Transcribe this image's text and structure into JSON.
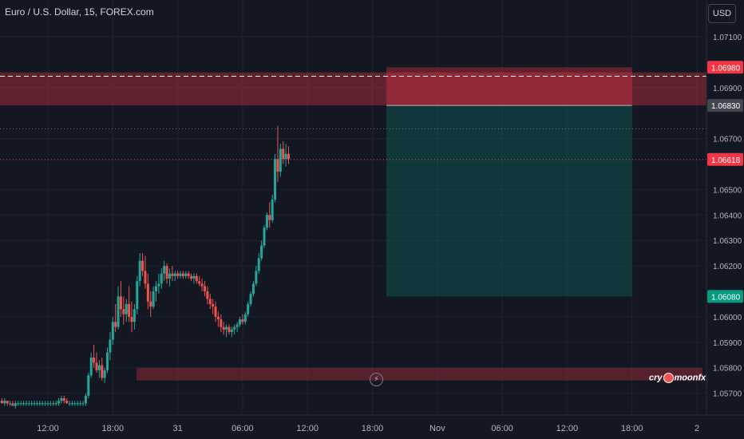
{
  "header": {
    "symbol_title": "Euro / U.S. Dollar, 15, FOREX.com"
  },
  "currency_button": "USD",
  "watermark": {
    "left": "cry",
    "right": "moonfx"
  },
  "lightning_icon": "lightning-icon",
  "colors": {
    "background": "#131722",
    "up": "#26a69a",
    "down": "#ef5350",
    "stop_zone": "rgba(242,54,69,0.35)",
    "target_zone": "rgba(8,153,129,0.25)",
    "support_zone": "rgba(242,54,69,0.30)",
    "grid": "#1e222d",
    "axis_text": "#b2b5be"
  },
  "chart_data": {
    "type": "candlestick",
    "title": "Euro / U.S. Dollar, 15, FOREX.com",
    "y_ticks": [
      1.071,
      1.069,
      1.067,
      1.065,
      1.064,
      1.063,
      1.062,
      1.06,
      1.059,
      1.058,
      1.057
    ],
    "y_tick_labels": [
      "1.07100",
      "1.06900",
      "1.06700",
      "1.06500",
      "1.06400",
      "1.06300",
      "1.06200",
      "1.06000",
      "1.05900",
      "1.05800",
      "1.05700"
    ],
    "x_ticks": [
      "12:00",
      "18:00",
      "31",
      "06:00",
      "12:00",
      "18:00",
      "Nov",
      "06:00",
      "12:00",
      "18:00",
      "2"
    ],
    "x_tick_hours": [
      12,
      18,
      24,
      30,
      36,
      42,
      48,
      54,
      60,
      66,
      72
    ],
    "price_labels": [
      {
        "value": 1.0698,
        "text": "1.06980",
        "style": "red"
      },
      {
        "value": 1.0683,
        "text": "1.06830",
        "style": "gray"
      },
      {
        "value": 1.06618,
        "text": "1.06618",
        "style": "red"
      },
      {
        "value": 1.0608,
        "text": "1.06080",
        "style": "green"
      }
    ],
    "horizontal_lines": [
      {
        "value": 1.06945,
        "style": "dashed-white"
      },
      {
        "value": 1.06738,
        "style": "dotted-gray"
      },
      {
        "value": 1.06618,
        "style": "dotted-red"
      }
    ],
    "zones": [
      {
        "kind": "stop",
        "from_hour": 0,
        "to_hour": 72.5,
        "low": 1.0683,
        "high": 1.0696,
        "full_width": true
      },
      {
        "kind": "stop",
        "from_hour": 43.3,
        "to_hour": 66,
        "low": 1.0683,
        "high": 1.0698
      },
      {
        "kind": "target",
        "from_hour": 43.3,
        "to_hour": 66,
        "low": 1.0608,
        "high": 1.0683
      },
      {
        "kind": "support",
        "from_hour": 20.2,
        "to_hour": 72.5,
        "low": 1.0575,
        "high": 1.058
      }
    ],
    "candles_hours_start": 7.5,
    "candles_hours_step": 0.25,
    "candles": [
      [
        1.0567,
        1.0568,
        1.0566,
        1.0567
      ],
      [
        1.0567,
        1.0568,
        1.0566,
        1.0566
      ],
      [
        1.0566,
        1.0568,
        1.0565,
        1.0567
      ],
      [
        1.0567,
        1.0567,
        1.0565,
        1.0566
      ],
      [
        1.0566,
        1.0567,
        1.0565,
        1.0566
      ],
      [
        1.0566,
        1.0567,
        1.0565,
        1.0565
      ],
      [
        1.0565,
        1.0567,
        1.0564,
        1.0566
      ],
      [
        1.0566,
        1.0567,
        1.0565,
        1.0566
      ],
      [
        1.0566,
        1.0567,
        1.0565,
        1.0566
      ],
      [
        1.0566,
        1.0567,
        1.0565,
        1.0566
      ],
      [
        1.0566,
        1.0567,
        1.0565,
        1.0566
      ],
      [
        1.0566,
        1.0567,
        1.0565,
        1.0566
      ],
      [
        1.0566,
        1.0567,
        1.0565,
        1.0566
      ],
      [
        1.0566,
        1.0567,
        1.0565,
        1.0566
      ],
      [
        1.0566,
        1.0567,
        1.0565,
        1.0566
      ],
      [
        1.0566,
        1.0567,
        1.0565,
        1.0566
      ],
      [
        1.0566,
        1.0567,
        1.0565,
        1.0566
      ],
      [
        1.0566,
        1.0567,
        1.0565,
        1.0566
      ],
      [
        1.0566,
        1.0567,
        1.0565,
        1.0566
      ],
      [
        1.0566,
        1.0567,
        1.0565,
        1.0566
      ],
      [
        1.0566,
        1.0567,
        1.0565,
        1.0566
      ],
      [
        1.0566,
        1.0567,
        1.0565,
        1.0566
      ],
      [
        1.0566,
        1.0568,
        1.0565,
        1.0567
      ],
      [
        1.0567,
        1.0569,
        1.0566,
        1.0568
      ],
      [
        1.0568,
        1.0569,
        1.0566,
        1.0567
      ],
      [
        1.0567,
        1.0568,
        1.0566,
        1.0566
      ],
      [
        1.0566,
        1.0567,
        1.0565,
        1.0566
      ],
      [
        1.0566,
        1.0567,
        1.0565,
        1.0566
      ],
      [
        1.0566,
        1.0567,
        1.0565,
        1.0566
      ],
      [
        1.0566,
        1.0567,
        1.0565,
        1.0566
      ],
      [
        1.0566,
        1.0567,
        1.0565,
        1.0566
      ],
      [
        1.0566,
        1.0567,
        1.0565,
        1.0566
      ],
      [
        1.0566,
        1.057,
        1.0565,
        1.0569
      ],
      [
        1.0569,
        1.0578,
        1.0568,
        1.0577
      ],
      [
        1.0577,
        1.0586,
        1.0576,
        1.0584
      ],
      [
        1.0584,
        1.0589,
        1.058,
        1.0582
      ],
      [
        1.0582,
        1.0586,
        1.0578,
        1.0579
      ],
      [
        1.0579,
        1.0583,
        1.0576,
        1.0581
      ],
      [
        1.0581,
        1.0584,
        1.0575,
        1.0576
      ],
      [
        1.0576,
        1.058,
        1.0574,
        1.0579
      ],
      [
        1.0579,
        1.0588,
        1.0578,
        1.0586
      ],
      [
        1.0586,
        1.0594,
        1.0583,
        1.0591
      ],
      [
        1.0591,
        1.06,
        1.0589,
        1.0598
      ],
      [
        1.0598,
        1.0605,
        1.0594,
        1.0596
      ],
      [
        1.0596,
        1.0612,
        1.0595,
        1.0608
      ],
      [
        1.0608,
        1.0614,
        1.06,
        1.0603
      ],
      [
        1.0603,
        1.0608,
        1.0597,
        1.0601
      ],
      [
        1.0601,
        1.0607,
        1.0598,
        1.0605
      ],
      [
        1.0605,
        1.0612,
        1.0598,
        1.06
      ],
      [
        1.06,
        1.0606,
        1.0594,
        1.0598
      ],
      [
        1.0598,
        1.0605,
        1.0595,
        1.0603
      ],
      [
        1.0603,
        1.0616,
        1.0601,
        1.0614
      ],
      [
        1.0614,
        1.0625,
        1.0612,
        1.0622
      ],
      [
        1.0622,
        1.0625,
        1.0616,
        1.0618
      ],
      [
        1.0618,
        1.0624,
        1.0611,
        1.0613
      ],
      [
        1.0613,
        1.0617,
        1.0603,
        1.0606
      ],
      [
        1.0606,
        1.061,
        1.06,
        1.0604
      ],
      [
        1.0604,
        1.0612,
        1.0603,
        1.061
      ],
      [
        1.061,
        1.0614,
        1.0606,
        1.0612
      ],
      [
        1.0612,
        1.0617,
        1.0609,
        1.0613
      ],
      [
        1.0613,
        1.0619,
        1.0611,
        1.0617
      ],
      [
        1.0617,
        1.0622,
        1.0614,
        1.062
      ],
      [
        1.062,
        1.0621,
        1.0613,
        1.0615
      ],
      [
        1.0615,
        1.0619,
        1.0612,
        1.0617
      ],
      [
        1.0617,
        1.062,
        1.0614,
        1.0616
      ],
      [
        1.0616,
        1.0618,
        1.0614,
        1.0617
      ],
      [
        1.0617,
        1.0618,
        1.0615,
        1.0616
      ],
      [
        1.0616,
        1.0618,
        1.0615,
        1.0617
      ],
      [
        1.0617,
        1.0618,
        1.0615,
        1.0616
      ],
      [
        1.0616,
        1.0618,
        1.0615,
        1.0617
      ],
      [
        1.0617,
        1.0618,
        1.0615,
        1.0616
      ],
      [
        1.0616,
        1.0617,
        1.0614,
        1.0615
      ],
      [
        1.0615,
        1.0617,
        1.0613,
        1.0616
      ],
      [
        1.0616,
        1.0617,
        1.0613,
        1.0614
      ],
      [
        1.0614,
        1.0616,
        1.0612,
        1.0613
      ],
      [
        1.0613,
        1.0615,
        1.061,
        1.0612
      ],
      [
        1.0612,
        1.0614,
        1.0608,
        1.061
      ],
      [
        1.061,
        1.0612,
        1.0605,
        1.0607
      ],
      [
        1.0607,
        1.0609,
        1.0603,
        1.0605
      ],
      [
        1.0605,
        1.0607,
        1.0601,
        1.0604
      ],
      [
        1.0604,
        1.0606,
        1.0598,
        1.06
      ],
      [
        1.06,
        1.0602,
        1.0596,
        1.0599
      ],
      [
        1.0599,
        1.0601,
        1.0594,
        1.0596
      ],
      [
        1.0596,
        1.0598,
        1.0593,
        1.0595
      ],
      [
        1.0595,
        1.0597,
        1.0592,
        1.0596
      ],
      [
        1.0596,
        1.0597,
        1.0593,
        1.0594
      ],
      [
        1.0594,
        1.0596,
        1.0592,
        1.0595
      ],
      [
        1.0595,
        1.0597,
        1.0593,
        1.0596
      ],
      [
        1.0596,
        1.0598,
        1.0594,
        1.0597
      ],
      [
        1.0597,
        1.06,
        1.0596,
        1.0599
      ],
      [
        1.0599,
        1.0601,
        1.0597,
        1.0598
      ],
      [
        1.0598,
        1.0602,
        1.0597,
        1.0601
      ],
      [
        1.0601,
        1.0606,
        1.06,
        1.0605
      ],
      [
        1.0605,
        1.061,
        1.0604,
        1.0609
      ],
      [
        1.0609,
        1.0614,
        1.0608,
        1.0613
      ],
      [
        1.0613,
        1.062,
        1.0612,
        1.0618
      ],
      [
        1.0618,
        1.0625,
        1.0617,
        1.0623
      ],
      [
        1.0623,
        1.063,
        1.0622,
        1.0628
      ],
      [
        1.0628,
        1.0636,
        1.0627,
        1.0635
      ],
      [
        1.0635,
        1.0641,
        1.0634,
        1.064
      ],
      [
        1.064,
        1.0645,
        1.0635,
        1.0638
      ],
      [
        1.0638,
        1.0648,
        1.0637,
        1.0646
      ],
      [
        1.0646,
        1.0664,
        1.0645,
        1.0662
      ],
      [
        1.0662,
        1.0675,
        1.0653,
        1.0657
      ],
      [
        1.0657,
        1.0668,
        1.0655,
        1.0666
      ],
      [
        1.0666,
        1.0669,
        1.066,
        1.0662
      ],
      [
        1.0662,
        1.0668,
        1.0659,
        1.0664
      ],
      [
        1.0664,
        1.0667,
        1.066,
        1.0662
      ]
    ]
  }
}
